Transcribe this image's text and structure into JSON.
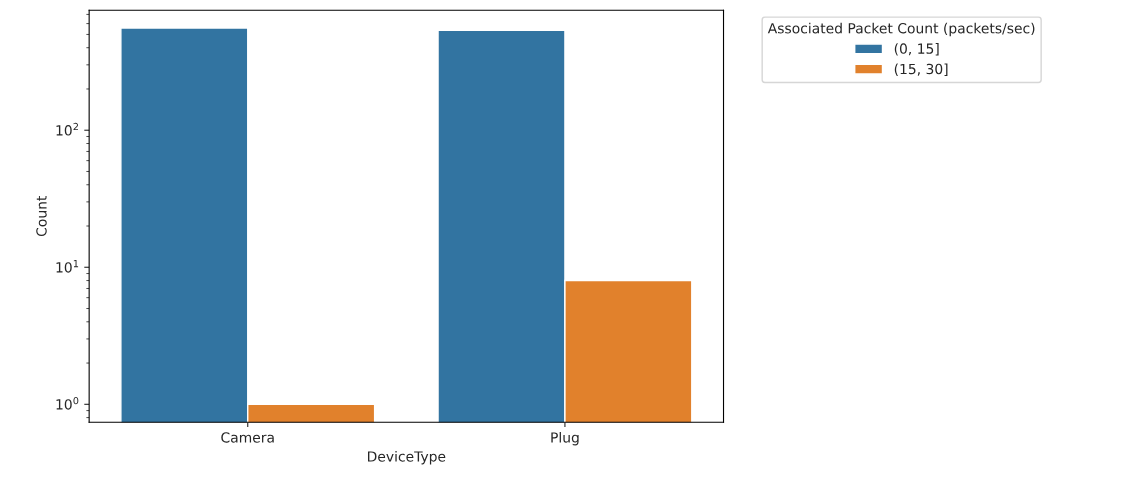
{
  "chart_data": {
    "type": "bar",
    "xlabel": "DeviceType",
    "ylabel": "Count",
    "legend_title": "Associated Packet Count (packets/sec)",
    "categories": [
      "Camera",
      "Plug"
    ],
    "series": [
      {
        "name": "(0, 15]",
        "color": "#3274a1",
        "values": [
          556,
          537
        ]
      },
      {
        "name": "(15, 30]",
        "color": "#e1812c",
        "values": [
          1,
          8
        ]
      }
    ],
    "log": true,
    "ylim": [
      0.74,
      751
    ],
    "yticks": [
      {
        "value": 1,
        "label": "10$^{0}$"
      },
      {
        "value": 10,
        "label": "10$^{1}$"
      },
      {
        "value": 100,
        "label": "10$^{2}$"
      }
    ],
    "legend": "top right",
    "grid": false
  }
}
